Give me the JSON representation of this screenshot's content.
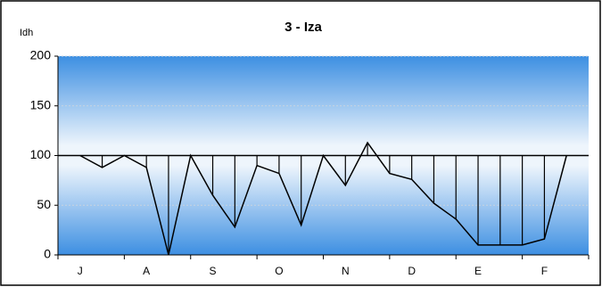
{
  "chart_data": {
    "type": "line",
    "title": "3 - Iza",
    "y_label": "Idh",
    "categories": [
      null,
      "J",
      null,
      null,
      "A",
      null,
      null,
      "S",
      null,
      null,
      "O",
      null,
      null,
      "N",
      null,
      null,
      "D",
      null,
      null,
      "E",
      null,
      null,
      "F",
      null
    ],
    "values": [
      null,
      100,
      88,
      100,
      88,
      0,
      100,
      60,
      28,
      90,
      82,
      30,
      100,
      70,
      113,
      82,
      76,
      52,
      36,
      10,
      10,
      10,
      16,
      100
    ],
    "color": "#000000",
    "reference_line": 100,
    "ylim": [
      0,
      200
    ],
    "yticks": [
      0,
      50,
      100,
      150,
      200
    ],
    "grid": true
  }
}
